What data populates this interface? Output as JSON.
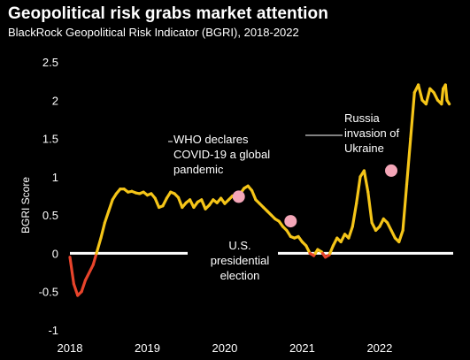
{
  "header": {
    "title": "Geopolitical risk grabs market attention",
    "subtitle": "BlackRock Geopolitical Risk Indicator (BGRI), 2018-2022"
  },
  "colors": {
    "background": "#000000",
    "text": "#ffffff",
    "line_positive": "#f5c518",
    "line_negative": "#e8442b",
    "marker": "#f4a6b8",
    "zero_line": "#ffffff"
  },
  "chart_data": {
    "type": "line",
    "title": "Geopolitical risk grabs market attention",
    "subtitle": "BlackRock Geopolitical Risk Indicator (BGRI), 2018-2022",
    "xlabel": "",
    "ylabel": "BGRI Score",
    "xlim": [
      2018.0,
      2022.95
    ],
    "ylim": [
      -1,
      2.5
    ],
    "x_ticks": [
      2018,
      2019,
      2020,
      2021,
      2022
    ],
    "x_tick_labels": [
      "2018",
      "2019",
      "2020",
      "2021",
      "2022"
    ],
    "y_ticks": [
      -1,
      -0.5,
      0,
      0.5,
      1,
      1.5,
      2,
      2.5
    ],
    "y_tick_labels": [
      "-1",
      "-0.5",
      "0",
      "0.5",
      "1",
      "1.5",
      "2",
      "2.5"
    ],
    "grid": false,
    "series": [
      {
        "name": "BGRI",
        "x": [
          2018.0,
          2018.05,
          2018.1,
          2018.15,
          2018.2,
          2018.3,
          2018.4,
          2018.45,
          2018.5,
          2018.55,
          2018.6,
          2018.65,
          2018.7,
          2018.75,
          2018.8,
          2018.85,
          2018.9,
          2018.95,
          2019.0,
          2019.05,
          2019.1,
          2019.15,
          2019.2,
          2019.25,
          2019.3,
          2019.35,
          2019.4,
          2019.45,
          2019.5,
          2019.55,
          2019.6,
          2019.65,
          2019.7,
          2019.75,
          2019.8,
          2019.85,
          2019.9,
          2019.95,
          2020.0,
          2020.05,
          2020.1,
          2020.15,
          2020.2,
          2020.25,
          2020.3,
          2020.35,
          2020.4,
          2020.45,
          2020.5,
          2020.55,
          2020.6,
          2020.65,
          2020.7,
          2020.75,
          2020.8,
          2020.85,
          2020.9,
          2020.95,
          2021.0,
          2021.05,
          2021.1,
          2021.15,
          2021.2,
          2021.25,
          2021.3,
          2021.35,
          2021.4,
          2021.45,
          2021.5,
          2021.55,
          2021.6,
          2021.65,
          2021.7,
          2021.75,
          2021.8,
          2021.85,
          2021.9,
          2021.95,
          2022.0,
          2022.05,
          2022.1,
          2022.15,
          2022.2,
          2022.25,
          2022.3,
          2022.35,
          2022.4,
          2022.45,
          2022.5,
          2022.55,
          2022.6,
          2022.65,
          2022.7,
          2022.75,
          2022.8,
          2022.82,
          2022.85,
          2022.87,
          2022.9
        ],
        "y": [
          -0.05,
          -0.4,
          -0.55,
          -0.5,
          -0.35,
          -0.15,
          0.2,
          0.4,
          0.55,
          0.7,
          0.78,
          0.84,
          0.84,
          0.8,
          0.81,
          0.79,
          0.78,
          0.8,
          0.76,
          0.78,
          0.72,
          0.6,
          0.62,
          0.72,
          0.8,
          0.78,
          0.73,
          0.6,
          0.66,
          0.7,
          0.6,
          0.67,
          0.7,
          0.58,
          0.63,
          0.7,
          0.66,
          0.72,
          0.65,
          0.7,
          0.75,
          0.73,
          0.78,
          0.85,
          0.88,
          0.82,
          0.7,
          0.65,
          0.6,
          0.55,
          0.5,
          0.45,
          0.42,
          0.35,
          0.3,
          0.22,
          0.2,
          0.22,
          0.15,
          0.1,
          0.0,
          -0.03,
          0.05,
          0.02,
          -0.05,
          -0.02,
          0.1,
          0.2,
          0.15,
          0.25,
          0.2,
          0.35,
          0.65,
          1.0,
          1.08,
          0.8,
          0.4,
          0.3,
          0.35,
          0.45,
          0.4,
          0.3,
          0.2,
          0.15,
          0.3,
          0.9,
          1.5,
          2.1,
          2.2,
          2.0,
          1.95,
          2.15,
          2.1,
          2.0,
          1.95,
          2.15,
          2.2,
          2.0,
          1.95
        ]
      }
    ],
    "annotations": [
      {
        "name": "who",
        "text_lines": [
          "WHO declares",
          "COVID-19 a global",
          "pandemic"
        ],
        "x": 2020.18,
        "y": 0.74
      },
      {
        "name": "us-election",
        "text_lines": [
          "U.S.",
          "presidential",
          "election"
        ],
        "x": 2020.85,
        "y": 0.42
      },
      {
        "name": "russia",
        "text_lines": [
          "Russia",
          "invasion of",
          "Ukraine"
        ],
        "x": 2022.15,
        "y": 1.08
      }
    ]
  }
}
